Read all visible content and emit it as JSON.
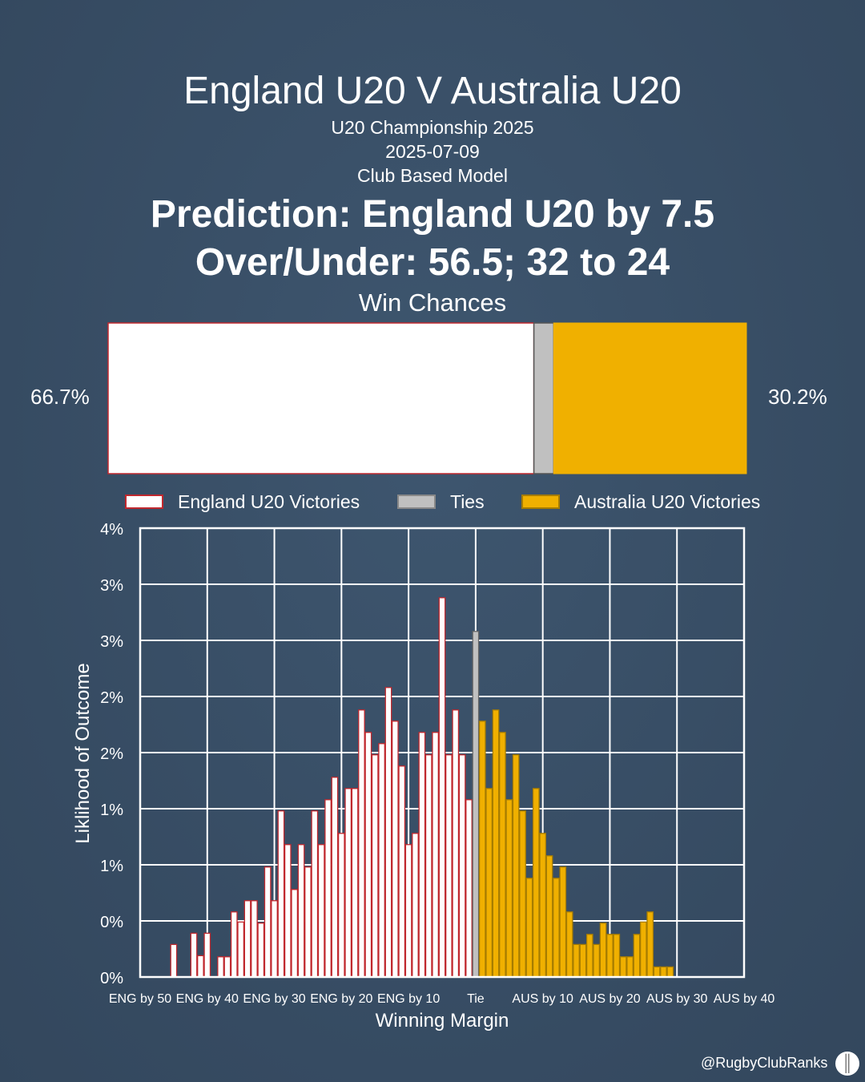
{
  "header": {
    "title": "England U20 V Australia U20",
    "competition": "U20 Championship 2025",
    "date": "2025-07-09",
    "model": "Club Based Model",
    "prediction": "Prediction: England U20 by 7.5",
    "over_under": "Over/Under: 56.5; 32 to 24"
  },
  "win_chances": {
    "title": "Win Chances",
    "england_label": "66.7%",
    "australia_label": "30.2%",
    "england": 66.7,
    "tie": 3.1,
    "australia": 30.2
  },
  "legend": {
    "england": "England U20 Victories",
    "ties": "Ties",
    "australia": "Australia U20 Victories"
  },
  "colors": {
    "background": "#3a5068",
    "england_fill": "#ffffff",
    "england_edge": "#c0282e",
    "tie_fill": "#c0c0c0",
    "australia_fill": "#f0b000",
    "australia_edge": "#a67c00"
  },
  "chart_data": {
    "type": "bar",
    "xlabel": "Winning Margin",
    "ylabel": "Liklihood of Outcome",
    "xlim": [
      -50,
      40
    ],
    "ylim": [
      0,
      4
    ],
    "grid": true,
    "y_ticks": [
      {
        "value": 0,
        "label": "0%"
      },
      {
        "value": 0.5,
        "label": "0%"
      },
      {
        "value": 1,
        "label": "1%"
      },
      {
        "value": 1.5,
        "label": "1%"
      },
      {
        "value": 2,
        "label": "2%"
      },
      {
        "value": 2.5,
        "label": "2%"
      },
      {
        "value": 3,
        "label": "3%"
      },
      {
        "value": 3.5,
        "label": "3%"
      },
      {
        "value": 4,
        "label": "4%"
      }
    ],
    "x_ticks": [
      {
        "value": -50,
        "label": "ENG by 50"
      },
      {
        "value": -40,
        "label": "ENG by 40"
      },
      {
        "value": -30,
        "label": "ENG by 30"
      },
      {
        "value": -20,
        "label": "ENG by 20"
      },
      {
        "value": -10,
        "label": "ENG by 10"
      },
      {
        "value": 0,
        "label": "Tie"
      },
      {
        "value": 10,
        "label": "AUS by 10"
      },
      {
        "value": 20,
        "label": "AUS by 20"
      },
      {
        "value": 30,
        "label": "AUS by 30"
      },
      {
        "value": 40,
        "label": "AUS by 40"
      }
    ],
    "series": [
      {
        "name": "England U20 Victories",
        "x": [
          -45,
          -42,
          -41,
          -40,
          -38,
          -37,
          -36,
          -35,
          -34,
          -33,
          -32,
          -31,
          -30,
          -29,
          -28,
          -27,
          -26,
          -25,
          -24,
          -23,
          -22,
          -21,
          -20,
          -19,
          -18,
          -17,
          -16,
          -15,
          -14,
          -13,
          -12,
          -11,
          -10,
          -9,
          -8,
          -7,
          -6,
          -5,
          -4,
          -3,
          -2,
          -1
        ],
        "values": [
          0.29,
          0.39,
          0.19,
          0.39,
          0.18,
          0.18,
          0.58,
          0.49,
          0.68,
          0.68,
          0.48,
          0.98,
          0.68,
          1.48,
          1.18,
          0.78,
          1.18,
          0.98,
          1.48,
          1.18,
          1.58,
          1.78,
          1.28,
          1.68,
          1.68,
          2.38,
          2.18,
          1.98,
          2.08,
          2.58,
          2.28,
          1.88,
          1.18,
          1.28,
          2.18,
          1.98,
          2.18,
          3.38,
          1.98,
          2.38,
          1.98,
          1.58
        ]
      },
      {
        "name": "Ties",
        "x": [
          0
        ],
        "values": [
          3.08
        ]
      },
      {
        "name": "Australia U20 Victories",
        "x": [
          1,
          2,
          3,
          4,
          5,
          6,
          7,
          8,
          9,
          10,
          11,
          12,
          13,
          14,
          15,
          16,
          17,
          18,
          19,
          20,
          21,
          22,
          23,
          24,
          25,
          26,
          27,
          28,
          29
        ],
        "values": [
          2.28,
          1.68,
          2.38,
          2.18,
          1.58,
          1.98,
          1.48,
          0.88,
          1.68,
          1.28,
          1.08,
          0.88,
          0.98,
          0.58,
          0.29,
          0.29,
          0.38,
          0.29,
          0.48,
          0.38,
          0.38,
          0.18,
          0.18,
          0.38,
          0.49,
          0.58,
          0.09,
          0.09,
          0.09
        ]
      }
    ]
  },
  "footer": {
    "credit": "@RugbyClubRanks"
  }
}
